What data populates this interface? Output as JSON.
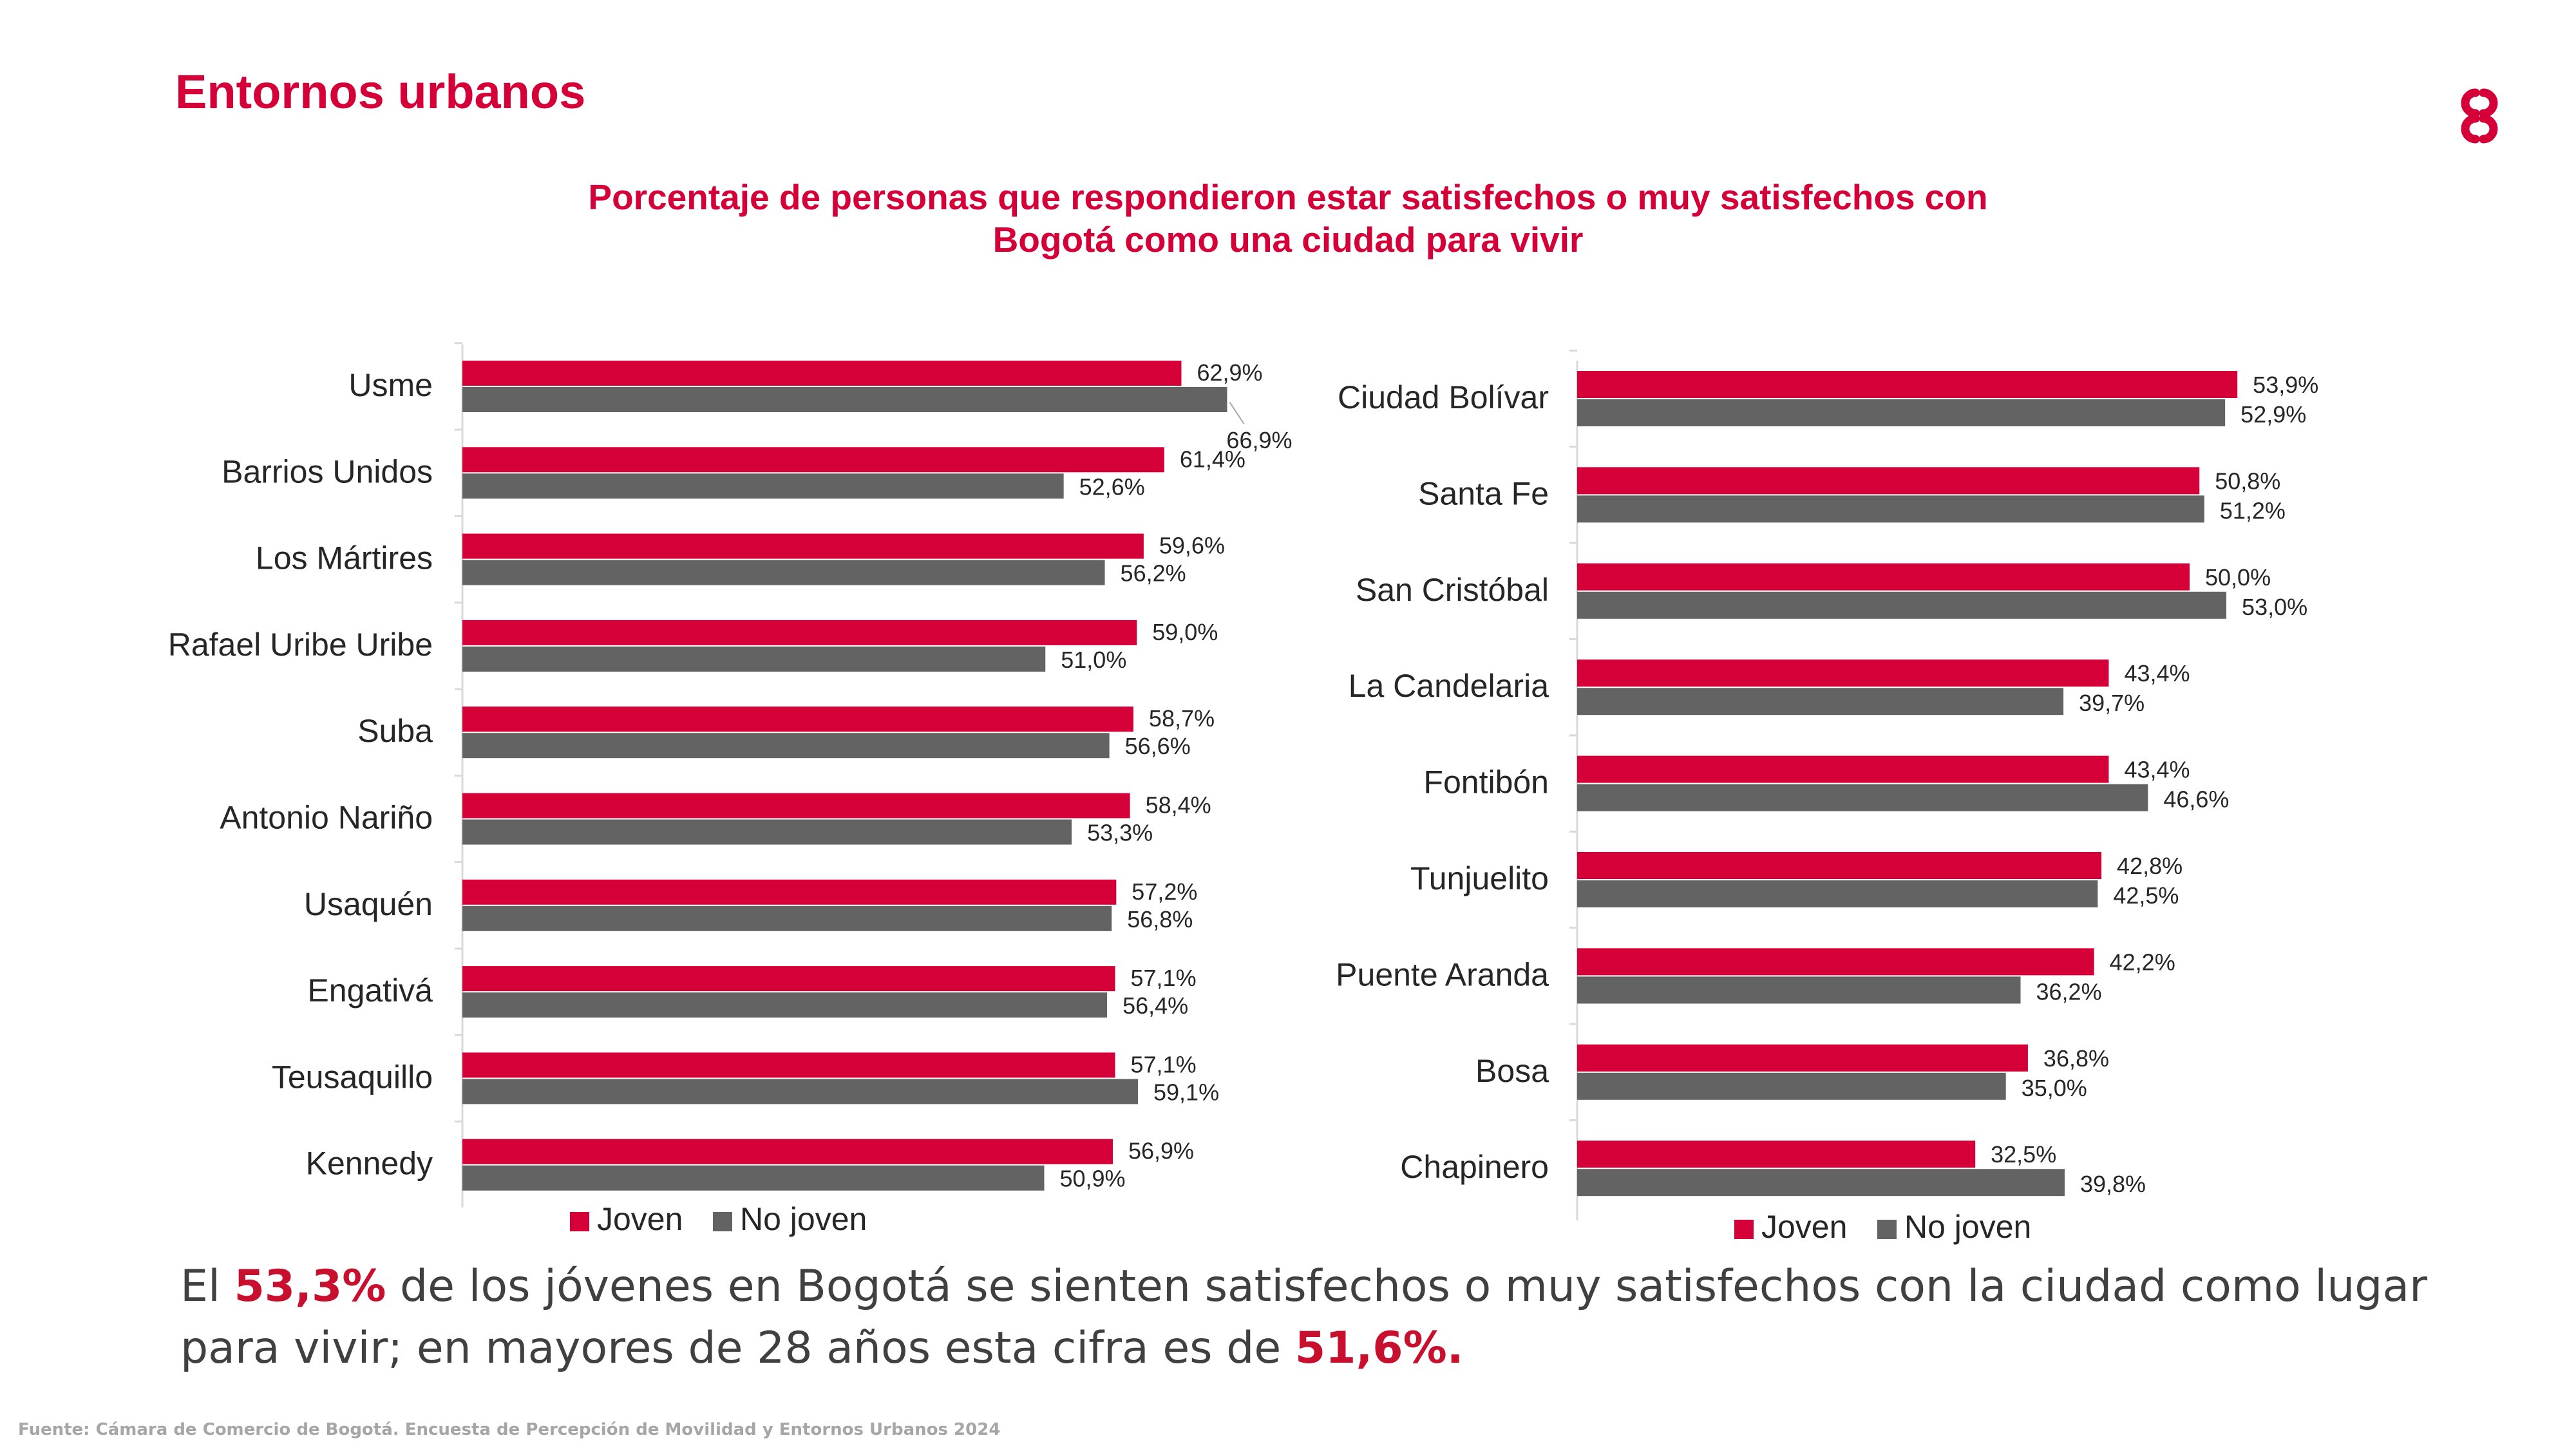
{
  "page": {
    "title": "Entornos urbanos",
    "logo": "camara-comercio-logo-icon"
  },
  "colors": {
    "accent": "#d50037",
    "joven": "#d50037",
    "no_joven": "#636363",
    "text": "#404040",
    "source": "#a6a6a6"
  },
  "chart_title_lines": [
    "Porcentaje de personas que respondieron estar satisfechos o muy satisfechos con",
    "Bogotá como una ciudad para vivir"
  ],
  "chart_data": [
    {
      "type": "bar",
      "orientation": "horizontal",
      "categories": [
        "Usme",
        "Barrios Unidos",
        "Los Mártires",
        "Rafael Uribe Uribe",
        "Suba",
        "Antonio Nariño",
        "Usaquén",
        "Engativá",
        "Teusaquillo",
        "Kennedy"
      ],
      "series": [
        {
          "name": "Joven",
          "values": [
            62.9,
            61.4,
            59.6,
            59.0,
            58.7,
            58.4,
            57.2,
            57.1,
            57.1,
            56.9
          ],
          "labels": [
            "62,9%",
            "61,4%",
            "59,6%",
            "59,0%",
            "58,7%",
            "58,4%",
            "57,2%",
            "57,1%",
            "57,1%",
            "56,9%"
          ]
        },
        {
          "name": "No joven",
          "values": [
            66.9,
            52.6,
            56.2,
            51.0,
            56.6,
            53.3,
            56.8,
            56.4,
            59.1,
            50.9
          ],
          "labels": [
            "66,9%",
            "52,6%",
            "56,2%",
            "51,0%",
            "56,6%",
            "53,3%",
            "56,8%",
            "56,4%",
            "59,1%",
            "50,9%"
          ]
        }
      ],
      "xlim": [
        0,
        100
      ],
      "legend": [
        "Joven",
        "No joven"
      ],
      "legend_position": "bottom-left"
    },
    {
      "type": "bar",
      "orientation": "horizontal",
      "categories": [
        "Ciudad Bolívar",
        "Santa Fe",
        "San Cristóbal",
        "La Candelaria",
        "Fontibón",
        "Tunjuelito",
        "Puente Aranda",
        "Bosa",
        "Chapinero"
      ],
      "series": [
        {
          "name": "Joven",
          "values": [
            53.9,
            50.8,
            50.0,
            43.4,
            43.4,
            42.8,
            42.2,
            36.8,
            32.5
          ],
          "labels": [
            "53,9%",
            "50,8%",
            "50,0%",
            "43,4%",
            "43,4%",
            "42,8%",
            "42,2%",
            "36,8%",
            "32,5%"
          ]
        },
        {
          "name": "No joven",
          "values": [
            52.9,
            51.2,
            53.0,
            39.7,
            46.6,
            42.5,
            36.2,
            35.0,
            39.8
          ],
          "labels": [
            "52,9%",
            "51,2%",
            "53,0%",
            "39,7%",
            "46,6%",
            "42,5%",
            "36,2%",
            "35,0%",
            "39,8%"
          ]
        }
      ],
      "xlim": [
        0,
        100
      ],
      "legend": [
        "Joven",
        "No joven"
      ],
      "legend_position": "bottom-right"
    }
  ],
  "summary": {
    "part1": "El ",
    "value1": "53,3%",
    "part2": " de los jóvenes en Bogotá se sienten satisfechos o muy satisfechos con la ciudad como lugar para vivir; en mayores de 28 años esta cifra es de ",
    "value2": "51,6%."
  },
  "source": "Fuente: Cámara de Comercio de Bogotá. Encuesta de Percepción de Movilidad y Entornos Urbanos 2024"
}
